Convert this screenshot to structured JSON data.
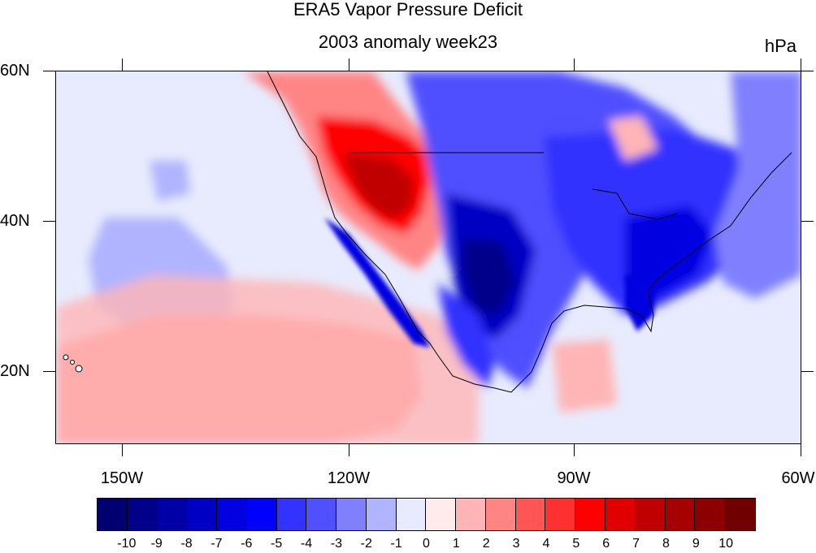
{
  "chart": {
    "title": "ERA5 Vapor Pressure Deficit",
    "subtitle": "2003 anomaly week23",
    "units": "hPa"
  },
  "axes": {
    "y_labels": [
      "60N",
      "40N",
      "20N"
    ],
    "x_labels": [
      "150W",
      "120W",
      "90W",
      "60W"
    ]
  },
  "colorbar": {
    "labels": [
      "-10",
      "-9",
      "-8",
      "-7",
      "-6",
      "-5",
      "-4",
      "-3",
      "-2",
      "-1",
      "0",
      "1",
      "2",
      "3",
      "4",
      "5",
      "6",
      "7",
      "8",
      "9",
      "10"
    ],
    "colors": [
      "#000070",
      "#00008a",
      "#0000a6",
      "#0000c4",
      "#0000e0",
      "#0000ff",
      "#3333ff",
      "#5050ff",
      "#8080ff",
      "#b0b4ff",
      "#e8ebfd",
      "#ffebeb",
      "#ffb5b5",
      "#ff8585",
      "#ff5555",
      "#ff3030",
      "#ff0000",
      "#e00000",
      "#c00000",
      "#a60000",
      "#8c0000",
      "#700000"
    ]
  },
  "chart_data": {
    "type": "map",
    "title": "ERA5 Vapor Pressure Deficit",
    "subtitle": "2003 anomaly week23",
    "units": "hPa",
    "lon_range": [
      -161,
      -60
    ],
    "lat_range": [
      10,
      60
    ],
    "lon_ticks": [
      -150,
      -120,
      -90,
      -60
    ],
    "lat_ticks": [
      60,
      40,
      20
    ],
    "levels": [
      -10,
      -9,
      -8,
      -7,
      -6,
      -5,
      -4,
      -3,
      -2,
      -1,
      0,
      1,
      2,
      3,
      4,
      5,
      6,
      7,
      8,
      9,
      10
    ]
  }
}
